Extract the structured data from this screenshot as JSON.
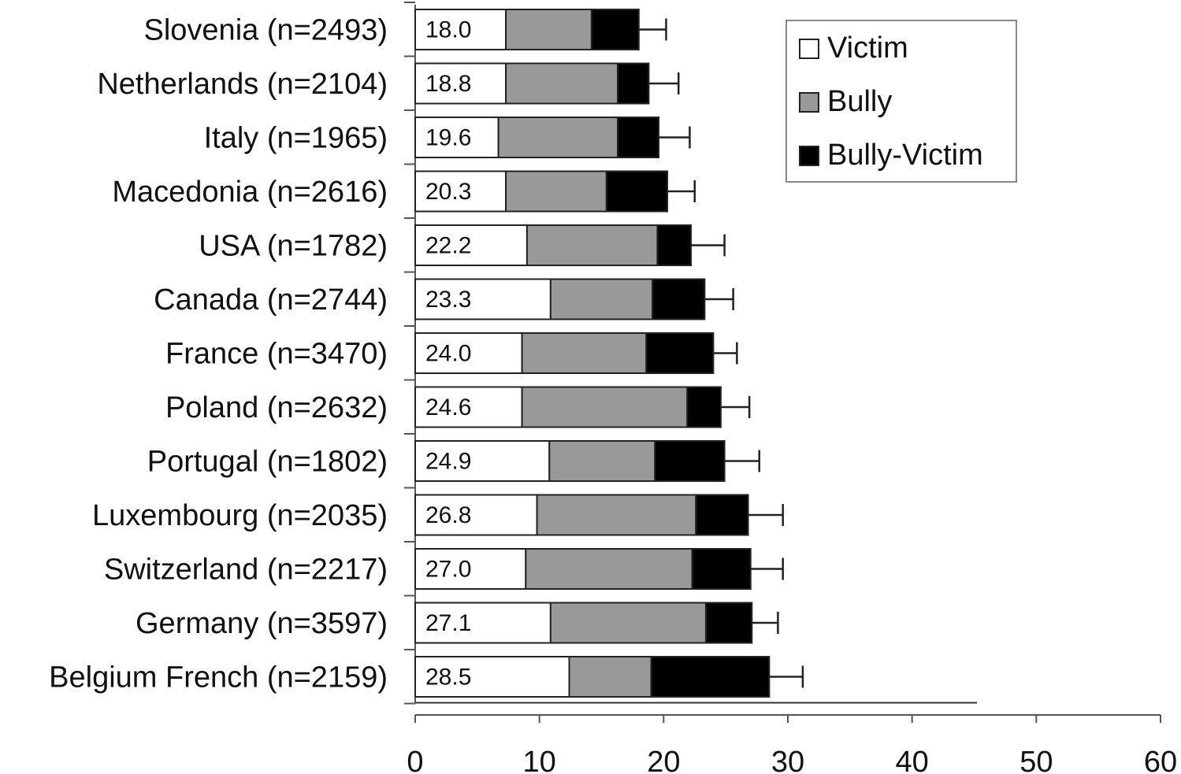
{
  "chart_data": {
    "type": "bar",
    "orientation": "horizontal",
    "stacked": true,
    "title": "",
    "xlabel": "",
    "ylabel": "",
    "xlim": [
      0,
      60
    ],
    "x_ticks": [
      "0",
      "10",
      "20",
      "30",
      "40",
      "50",
      "60"
    ],
    "grid": false,
    "legend_position": "top-right",
    "categories": [
      "Slovenia (n=2493)",
      "Netherlands (n=2104)",
      "Italy (n=1965)",
      "Macedonia (n=2616)",
      "USA (n=1782)",
      "Canada (n=2744)",
      "France (n=3470)",
      "Poland (n=2632)",
      "Portugal (n=1802)",
      "Luxembourg (n=2035)",
      "Switzerland (n=2217)",
      "Germany (n=3597)",
      "Belgium French (n=2159)"
    ],
    "totals": [
      18.0,
      18.8,
      19.6,
      20.3,
      22.2,
      23.3,
      24.0,
      24.6,
      24.9,
      26.8,
      27.0,
      27.1,
      28.5
    ],
    "total_labels": [
      "18.0",
      "18.8",
      "19.6",
      "20.3",
      "22.2",
      "23.3",
      "24.0",
      "24.6",
      "24.9",
      "26.8",
      "27.0",
      "27.1",
      "28.5"
    ],
    "series": [
      {
        "name": "Victim",
        "color": "#ffffff",
        "values": [
          7.3,
          7.3,
          6.7,
          7.3,
          9.0,
          10.9,
          8.6,
          8.6,
          10.8,
          9.8,
          8.9,
          10.9,
          12.4
        ]
      },
      {
        "name": "Bully",
        "color": "#999999",
        "values": [
          6.9,
          9.0,
          9.6,
          8.1,
          10.5,
          8.2,
          10.0,
          13.3,
          8.5,
          12.8,
          13.4,
          12.5,
          6.6
        ]
      },
      {
        "name": "Bully-Victim",
        "color": "#000000",
        "values": [
          3.8,
          2.5,
          3.3,
          4.9,
          2.7,
          4.2,
          5.4,
          2.7,
          5.6,
          4.2,
          4.7,
          3.7,
          9.5
        ]
      }
    ],
    "error_upper": [
      20.2,
      21.2,
      22.1,
      22.5,
      24.9,
      25.6,
      25.9,
      26.9,
      27.7,
      29.6,
      29.6,
      29.2,
      31.2
    ]
  }
}
